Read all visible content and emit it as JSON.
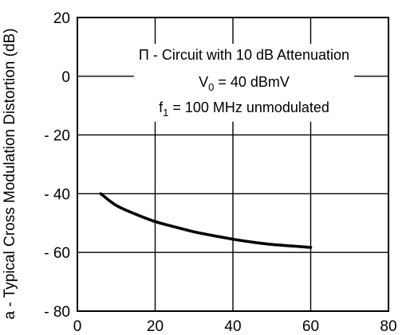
{
  "chart_data": {
    "type": "line",
    "title": "",
    "xlabel": "",
    "ylabel": "a - Typical Cross Modulation Distortion (dB)",
    "xlim": [
      0,
      80
    ],
    "ylim": [
      -80,
      20
    ],
    "x_ticks": [
      0,
      20,
      40,
      60,
      80
    ],
    "y_ticks": [
      20,
      0,
      -20,
      -40,
      -60,
      -80
    ],
    "x_tick_labels": [
      "0",
      "20",
      "40",
      "60",
      "80"
    ],
    "y_tick_labels": [
      "20",
      "0",
      "- 20",
      "- 40",
      "- 60",
      "- 80"
    ],
    "grid": true,
    "annotations": [
      {
        "prefix": "Π",
        "text": " - Circuit with 10 dB Attenuation"
      },
      {
        "prefix": "V",
        "sub": "0",
        "text": " = 40 dBmV"
      },
      {
        "prefix": "f",
        "sub": "1",
        "text": " = 100 MHz unmodulated"
      }
    ],
    "series": [
      {
        "x": [
          6,
          10,
          15,
          20,
          25,
          30,
          35,
          40,
          45,
          50,
          55,
          60
        ],
        "y": [
          -40,
          -44,
          -47,
          -49.5,
          -51.3,
          -53,
          -54.3,
          -55.5,
          -56.5,
          -57.3,
          -57.8,
          -58.3
        ]
      }
    ]
  }
}
